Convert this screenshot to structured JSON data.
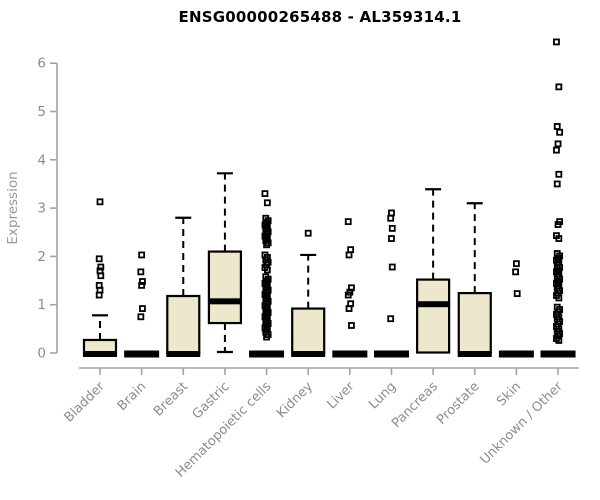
{
  "chart_data": {
    "type": "boxplot",
    "title": "ENSG00000265488 - AL359314.1",
    "ylabel": "Expression",
    "ylim": [
      0,
      6.5
    ],
    "yticks": [
      0,
      1,
      2,
      3,
      4,
      5,
      6
    ],
    "grid": false,
    "legend": "none",
    "categories": [
      "Bladder",
      "Brain",
      "Breast",
      "Gastric",
      "Hematopoietic cells",
      "Kidney",
      "Liver",
      "Lung",
      "Pancreas",
      "Prostate",
      "Skin",
      "Unknown / Other"
    ],
    "series": [
      {
        "name": "Bladder",
        "q1": 0,
        "median": 0,
        "q3": 0.27,
        "whisker_low": 0,
        "whisker_high": 0.78,
        "outliers": [
          3.13,
          1.95,
          1.78,
          1.7,
          1.6,
          1.4,
          1.3,
          1.2
        ]
      },
      {
        "name": "Brain",
        "q1": 0,
        "median": 0,
        "q3": 0,
        "whisker_low": 0,
        "whisker_high": 0,
        "outliers": [
          2.03,
          1.68,
          1.48,
          1.4,
          0.92,
          0.75
        ]
      },
      {
        "name": "Breast",
        "q1": 0,
        "median": 0,
        "q3": 1.18,
        "whisker_low": 0,
        "whisker_high": 2.8,
        "outliers": []
      },
      {
        "name": "Gastric",
        "q1": 0.62,
        "median": 1.07,
        "q3": 2.1,
        "whisker_low": 0.02,
        "whisker_high": 3.72,
        "outliers": []
      },
      {
        "name": "Hematopoietic cells",
        "q1": 0,
        "median": 0,
        "q3": 0,
        "whisker_low": 0,
        "whisker_high": 0,
        "outliers": [
          3.3,
          3.11,
          2.79,
          2.74,
          2.7,
          2.65,
          2.61,
          2.56,
          2.51,
          2.47,
          2.42,
          2.38,
          2.33,
          2.28,
          2.24,
          2.03,
          1.98,
          1.93,
          1.88,
          1.83,
          1.77,
          1.72,
          1.58,
          1.53,
          1.49,
          1.44,
          1.4,
          1.35,
          1.3,
          1.26,
          1.21,
          1.17,
          1.12,
          1.07,
          1.03,
          0.98,
          0.94,
          0.89,
          0.84,
          0.8,
          0.75,
          0.71,
          0.66,
          0.61,
          0.57,
          0.52,
          0.48,
          0.43,
          0.38,
          0.33
        ]
      },
      {
        "name": "Kidney",
        "q1": 0,
        "median": 0,
        "q3": 0.92,
        "whisker_low": 0,
        "whisker_high": 2.03,
        "outliers": [
          2.48
        ]
      },
      {
        "name": "Liver",
        "q1": 0,
        "median": 0,
        "q3": 0,
        "whisker_low": 0,
        "whisker_high": 0,
        "outliers": [
          2.72,
          2.14,
          2.03,
          1.35,
          1.26,
          1.2,
          1.02,
          0.92,
          0.57
        ]
      },
      {
        "name": "Lung",
        "q1": 0,
        "median": 0,
        "q3": 0,
        "whisker_low": 0,
        "whisker_high": 0,
        "outliers": [
          2.9,
          2.79,
          2.58,
          2.37,
          1.78,
          0.71
        ]
      },
      {
        "name": "Pancreas",
        "q1": 0.01,
        "median": 1.01,
        "q3": 1.52,
        "whisker_low": 0.01,
        "whisker_high": 3.39,
        "outliers": []
      },
      {
        "name": "Prostate",
        "q1": 0,
        "median": 0,
        "q3": 1.24,
        "whisker_low": 0,
        "whisker_high": 3.1,
        "outliers": []
      },
      {
        "name": "Skin",
        "q1": 0,
        "median": 0,
        "q3": 0,
        "whisker_low": 0,
        "whisker_high": 0,
        "outliers": [
          1.85,
          1.68,
          1.23
        ]
      },
      {
        "name": "Unknown / Other",
        "q1": 0,
        "median": 0,
        "q3": 0,
        "whisker_low": 0,
        "whisker_high": 0,
        "outliers": [
          6.44,
          5.51,
          4.69,
          4.57,
          4.33,
          4.2,
          3.7,
          3.5,
          2.72,
          2.66,
          2.43,
          2.37,
          2.06,
          2.01,
          1.96,
          1.92,
          1.87,
          1.82,
          1.77,
          1.72,
          1.68,
          1.63,
          1.58,
          1.53,
          1.48,
          1.44,
          1.39,
          1.34,
          1.29,
          1.24,
          1.19,
          1.14,
          0.95,
          0.9,
          0.85,
          0.8,
          0.75,
          0.7,
          0.65,
          0.6,
          0.55,
          0.5,
          0.45,
          0.4,
          0.35,
          0.3,
          0.26
        ]
      }
    ],
    "style": {
      "box_fill": "#EDE7CC",
      "box_stroke": "#000000",
      "median_color": "#000000",
      "outlier_color": "#000000",
      "axis_color": "#A3A3A3",
      "tick_label_color": "#8C8C8C",
      "title_color": "#000000",
      "outlier_marker": "open-square",
      "whisker_style": "dashed"
    }
  }
}
